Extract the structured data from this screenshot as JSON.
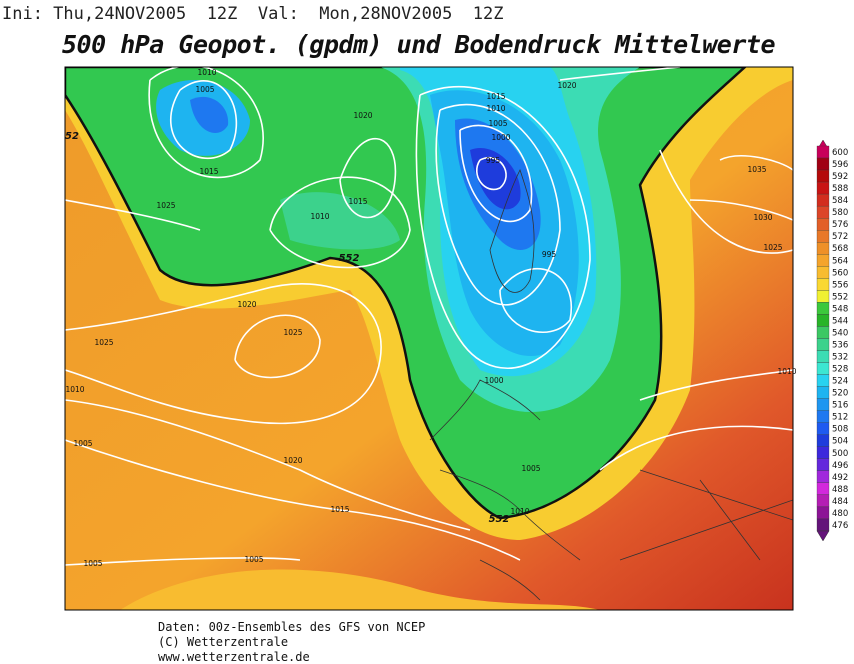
{
  "header": "Ini: Thu,24NOV2005  12Z  Val:  Mon,28NOV2005  12Z",
  "title": "500 hPa Geopot. (gpdm) und Bodendruck Mittelwerte",
  "isobar_labels": [
    "1010",
    "1005",
    "1015",
    "1025",
    "1020",
    "1015",
    "1010",
    "552",
    "1020",
    "1025",
    "1025",
    "1010",
    "1005",
    "1020",
    "1015",
    "1005",
    "1005",
    "1015",
    "1010",
    "1005",
    "1000",
    "995",
    "1020",
    "995",
    "1000",
    "1005",
    "1010",
    "552",
    "1035",
    "1030",
    "1025",
    "1010",
    "52"
  ],
  "colorbar": {
    "ticks": [
      600,
      596,
      592,
      588,
      584,
      580,
      576,
      572,
      568,
      564,
      560,
      556,
      552,
      548,
      544,
      540,
      536,
      532,
      528,
      524,
      520,
      516,
      512,
      508,
      504,
      500,
      496,
      492,
      488,
      484,
      480,
      476
    ],
    "colors": [
      "#c8005a",
      "#a00014",
      "#b40a0a",
      "#c81414",
      "#d22d1e",
      "#dc4628",
      "#e25f28",
      "#e87828",
      "#ee9028",
      "#f4a42c",
      "#f8bc30",
      "#fad832",
      "#f0f032",
      "#3cc83c",
      "#28b428",
      "#3cc864",
      "#3cd28c",
      "#3cdcb4",
      "#3ce6d2",
      "#28d2f0",
      "#1eb4f0",
      "#1e96f0",
      "#1e78f0",
      "#1e5af0",
      "#1e3cdc",
      "#3c28dc",
      "#6428dc",
      "#a028dc",
      "#d228dc",
      "#b41eb4",
      "#8c1496",
      "#64147a"
    ]
  },
  "footer": [
    "Daten: 00z-Ensembles des GFS von NCEP",
    "(C) Wetterzentrale",
    "www.wetterzentrale.de"
  ]
}
